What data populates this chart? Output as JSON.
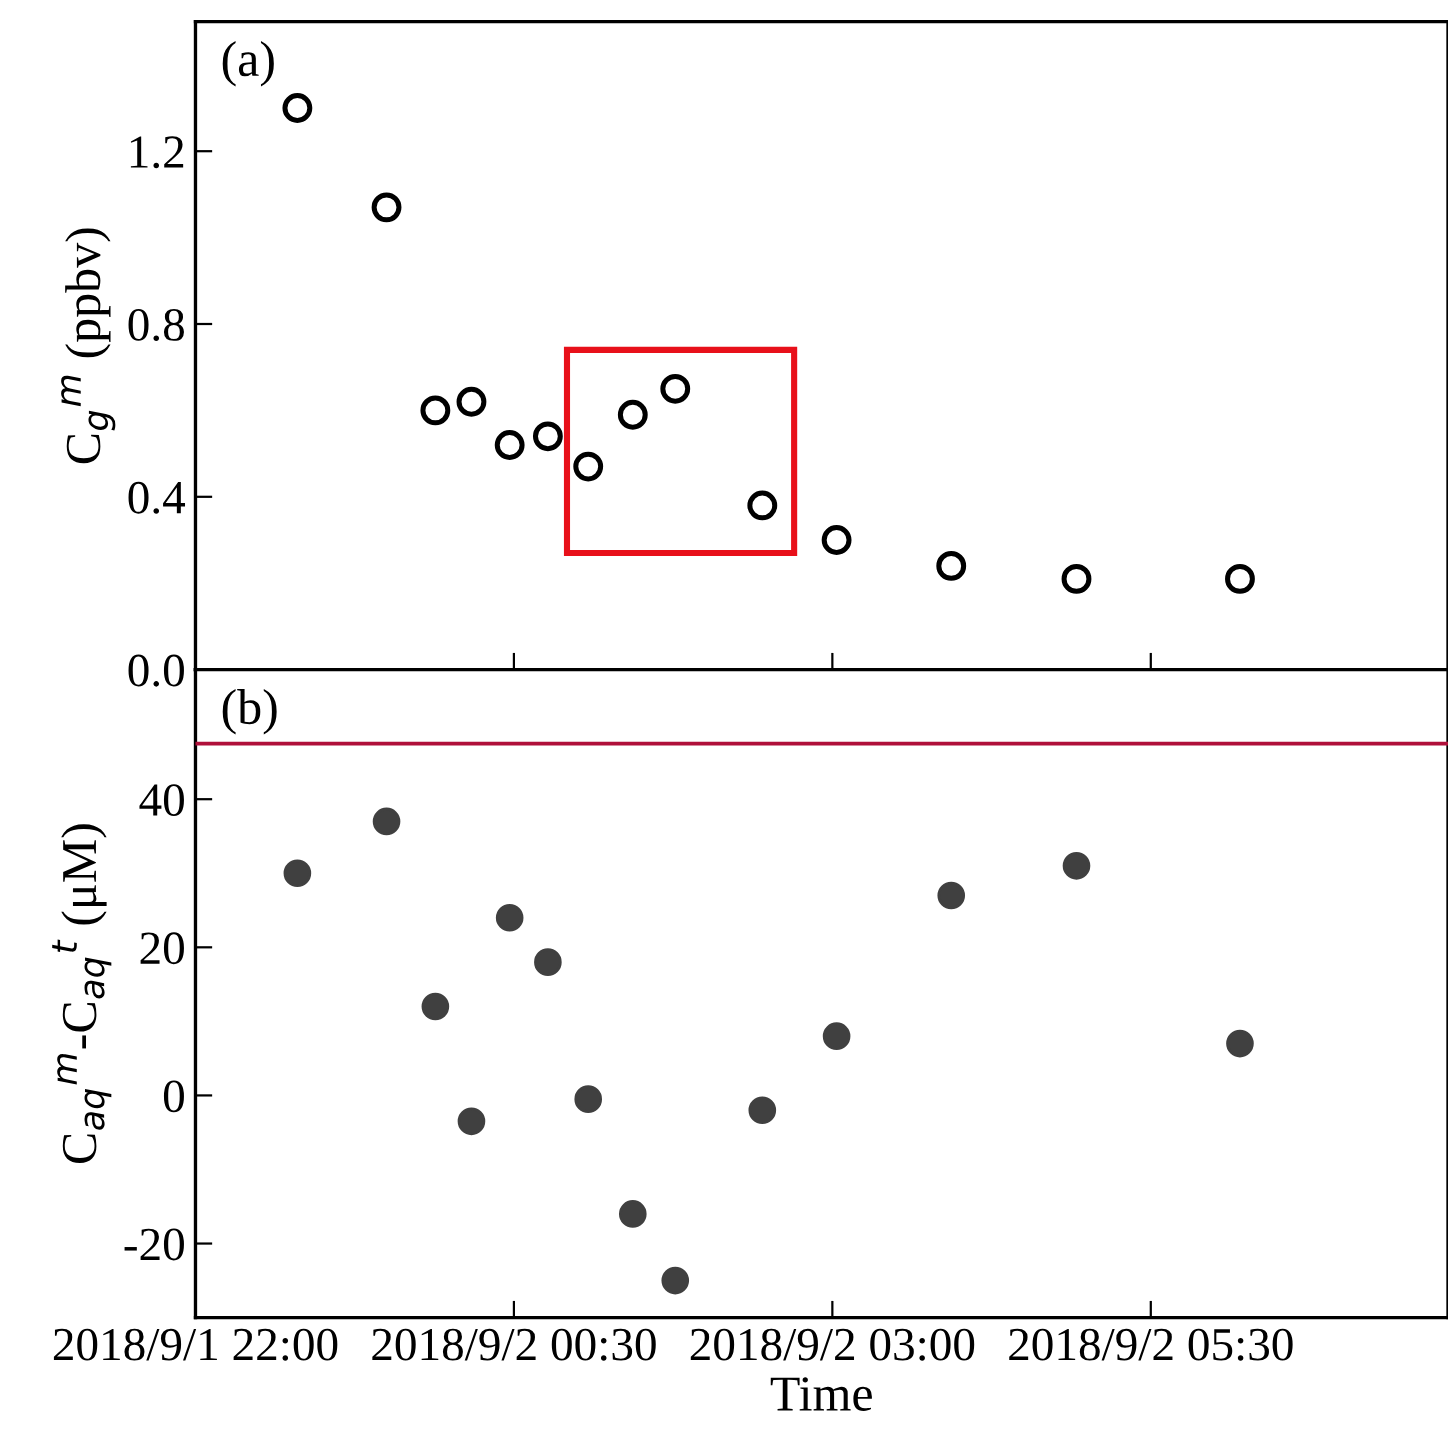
{
  "chart_data": [
    {
      "type": "scatter",
      "ylabel": "C$_{g}$$^{m}$ (ppbv)",
      "annotations": [
        "(a)"
      ],
      "x": [
        "2018-09-01T22:48",
        "2018-09-01T23:30",
        "2018-09-01T23:53",
        "2018-09-02T00:10",
        "2018-09-02T00:28",
        "2018-09-02T00:46",
        "2018-09-02T01:05",
        "2018-09-02T01:26",
        "2018-09-02T01:46",
        "2018-09-02T02:27",
        "2018-09-02T03:02",
        "2018-09-02T03:56",
        "2018-09-02T04:55",
        "2018-09-02T06:12"
      ],
      "series": [
        {
          "color": "#000000",
          "values": [
            1.3,
            1.07,
            0.6,
            0.62,
            0.52,
            0.54,
            0.47,
            0.59,
            0.65,
            0.38,
            0.3,
            0.24,
            0.21,
            0.21
          ]
        }
      ],
      "marker": "circle",
      "xlim": [
        "2018-09-01T22:00",
        "2018-09-02T07:50"
      ],
      "xticks": [
        {
          "value": "2018-09-01T22:00",
          "label": null
        },
        {
          "value": "2018-09-02T00:30",
          "label": null
        },
        {
          "value": "2018-09-02T03:00",
          "label": null
        },
        {
          "value": "2018-09-02T05:30",
          "label": null
        }
      ],
      "ylim": [
        0,
        1.5
      ],
      "yticks": [
        {
          "value": 0,
          "label": "0.0"
        },
        0.4,
        0.8,
        1.2
      ],
      "tick_labels": "y",
      "grid": false,
      "legend": false
    },
    {
      "type": "scatter",
      "xlabel": "Time",
      "ylabel": "C$_{aq}$$^{m}$-C$_{aq}$$^{t}$ (μM)",
      "annotations": [
        "(b)"
      ],
      "x": [
        "2018-09-01T22:48",
        "2018-09-01T23:30",
        "2018-09-01T23:53",
        "2018-09-02T00:10",
        "2018-09-02T00:28",
        "2018-09-02T00:46",
        "2018-09-02T01:05",
        "2018-09-02T01:26",
        "2018-09-02T01:46",
        "2018-09-02T02:27",
        "2018-09-02T03:02",
        "2018-09-02T03:56",
        "2018-09-02T04:55",
        "2018-09-02T06:12"
      ],
      "series": [
        {
          "color": "#404040",
          "values": [
            30,
            37,
            12,
            -3.5,
            24,
            18,
            -0.5,
            -16,
            -25,
            -2,
            8,
            27,
            31,
            7
          ]
        }
      ],
      "marker": "circle",
      "xlim": [
        "2018-09-01T22:00",
        "2018-09-02T07:50"
      ],
      "xticks": [
        {
          "value": "2018-09-01T22:00",
          "label": "2018/9/1 22:00"
        },
        {
          "value": "2018-09-02T00:30",
          "label": "2018/9/2 00:30"
        },
        {
          "value": "2018-09-02T03:00",
          "label": "2018/9/2 03:00"
        },
        {
          "value": "2018-09-02T05:30",
          "label": "2018/9/2 05:30"
        }
      ],
      "ylim": [
        -30,
        57.5
      ],
      "yticks": [
        -20,
        0,
        20,
        40
      ],
      "grid": false,
      "legend": false,
      "ref_lines": [
        {
          "axis": "y",
          "value": 47.5,
          "color": "#b0103a",
          "line_style": "solid"
        }
      ]
    }
  ]
}
